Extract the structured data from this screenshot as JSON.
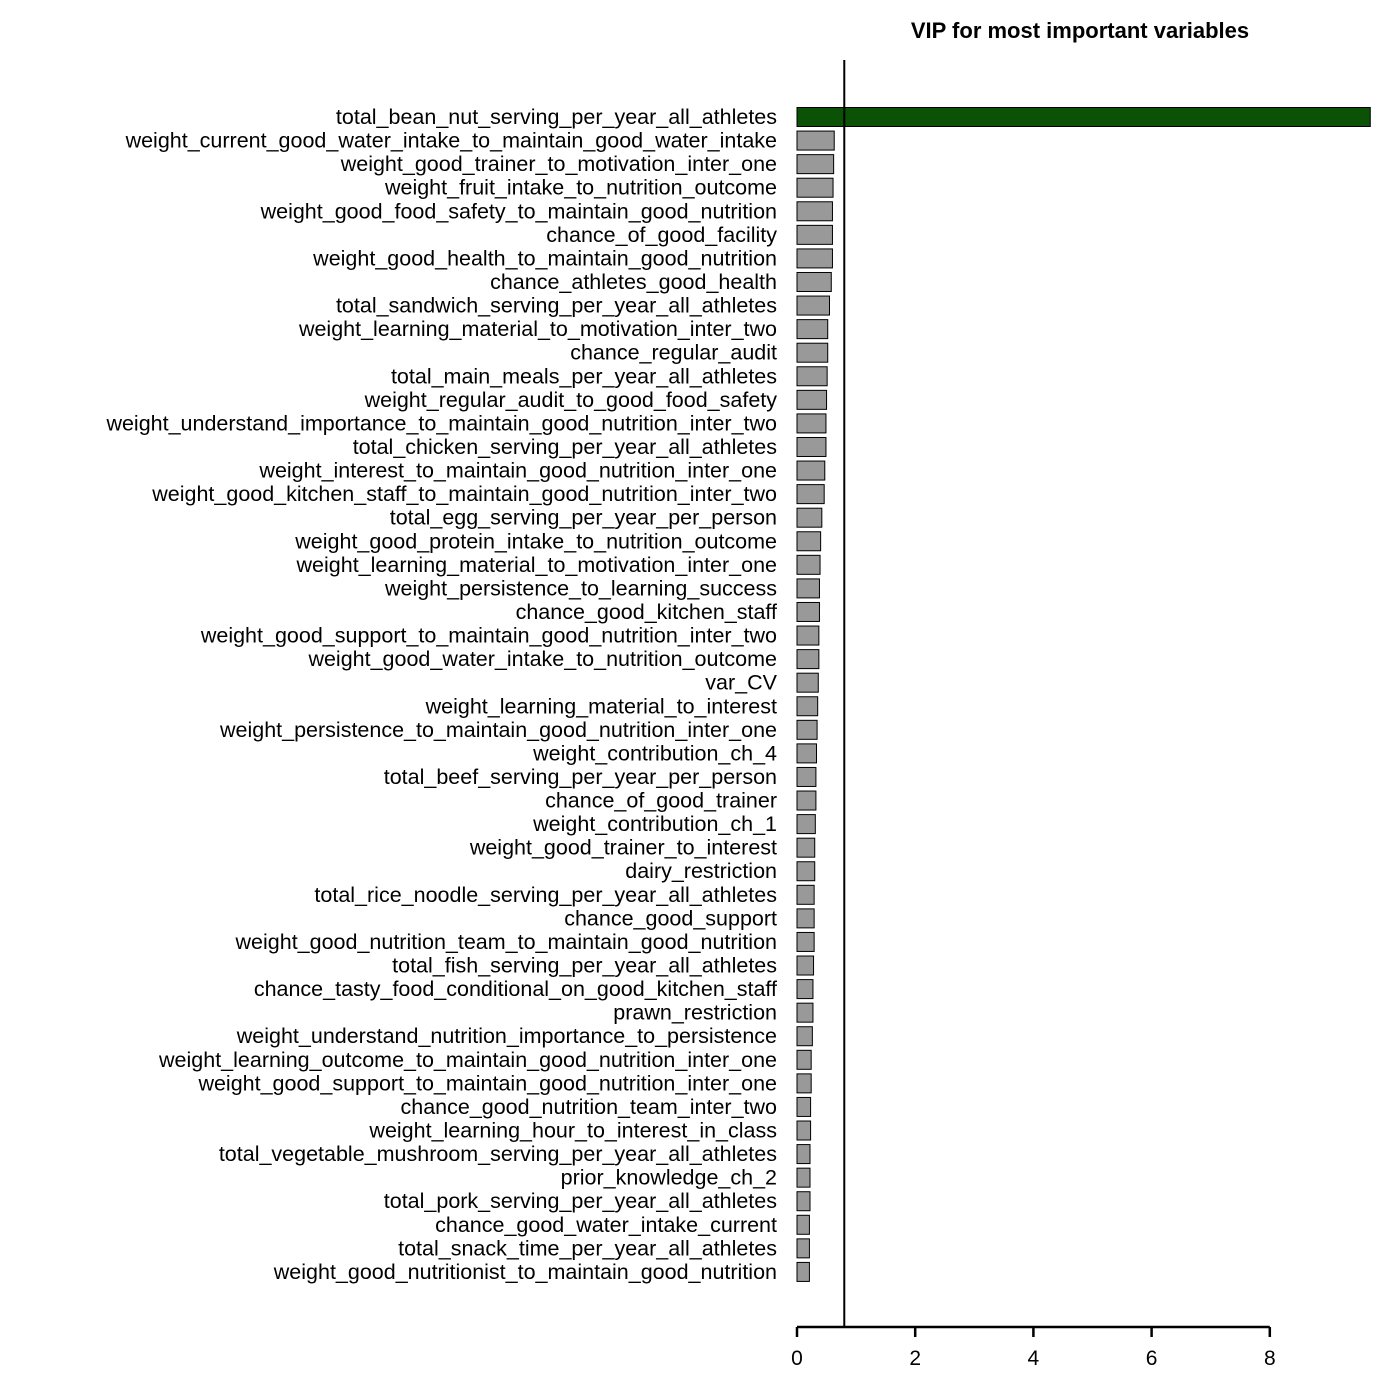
{
  "chart_data": {
    "type": "bar",
    "orientation": "horizontal",
    "title": "VIP for most important variables",
    "xlabel": "",
    "ylabel": "",
    "xlim": [
      0,
      9.7
    ],
    "xticks": [
      0,
      2,
      4,
      6,
      8
    ],
    "threshold": 0.8,
    "grid": false,
    "legend": "none",
    "colors": {
      "highlight": "#0b5206",
      "normal": "#999999",
      "outline": "#000000"
    },
    "categories": [
      "total_bean_nut_serving_per_year_all_athletes",
      "weight_current_good_water_intake_to_maintain_good_water_intake",
      "weight_good_trainer_to_motivation_inter_one",
      "weight_fruit_intake_to_nutrition_outcome",
      "weight_good_food_safety_to_maintain_good_nutrition",
      "chance_of_good_facility",
      "weight_good_health_to_maintain_good_nutrition",
      "chance_athletes_good_health",
      "total_sandwich_serving_per_year_all_athletes",
      "weight_learning_material_to_motivation_inter_two",
      "chance_regular_audit",
      "total_main_meals_per_year_all_athletes",
      "weight_regular_audit_to_good_food_safety",
      "weight_understand_importance_to_maintain_good_nutrition_inter_two",
      "total_chicken_serving_per_year_all_athletes",
      "weight_interest_to_maintain_good_nutrition_inter_one",
      "weight_good_kitchen_staff_to_maintain_good_nutrition_inter_two",
      "total_egg_serving_per_year_per_person",
      "weight_good_protein_intake_to_nutrition_outcome",
      "weight_learning_material_to_motivation_inter_one",
      "weight_persistence_to_learning_success",
      "chance_good_kitchen_staff",
      "weight_good_support_to_maintain_good_nutrition_inter_two",
      "weight_good_water_intake_to_nutrition_outcome",
      "var_CV",
      "weight_learning_material_to_interest",
      "weight_persistence_to_maintain_good_nutrition_inter_one",
      "weight_contribution_ch_4",
      "total_beef_serving_per_year_per_person",
      "chance_of_good_trainer",
      "weight_contribution_ch_1",
      "weight_good_trainer_to_interest",
      "dairy_restriction",
      "total_rice_noodle_serving_per_year_all_athletes",
      "chance_good_support",
      "weight_good_nutrition_team_to_maintain_good_nutrition",
      "total_fish_serving_per_year_all_athletes",
      "chance_tasty_food_conditional_on_good_kitchen_staff",
      "prawn_restriction",
      "weight_understand_nutrition_importance_to_persistence",
      "weight_learning_outcome_to_maintain_good_nutrition_inter_one",
      "weight_good_support_to_maintain_good_nutrition_inter_one",
      "chance_good_nutrition_team_inter_two",
      "weight_learning_hour_to_interest_in_class",
      "total_vegetable_mushroom_serving_per_year_all_athletes",
      "prior_knowledge_ch_2",
      "total_pork_serving_per_year_all_athletes",
      "chance_good_water_intake_current",
      "total_snack_time_per_year_all_athletes",
      "weight_good_nutritionist_to_maintain_good_nutrition"
    ],
    "values": [
      9.7,
      0.63,
      0.62,
      0.61,
      0.6,
      0.6,
      0.6,
      0.58,
      0.55,
      0.52,
      0.52,
      0.51,
      0.5,
      0.49,
      0.49,
      0.47,
      0.46,
      0.42,
      0.4,
      0.39,
      0.38,
      0.38,
      0.37,
      0.37,
      0.36,
      0.35,
      0.34,
      0.33,
      0.32,
      0.32,
      0.31,
      0.3,
      0.3,
      0.29,
      0.29,
      0.29,
      0.28,
      0.27,
      0.27,
      0.26,
      0.24,
      0.24,
      0.23,
      0.23,
      0.22,
      0.22,
      0.22,
      0.21,
      0.21,
      0.21
    ]
  }
}
